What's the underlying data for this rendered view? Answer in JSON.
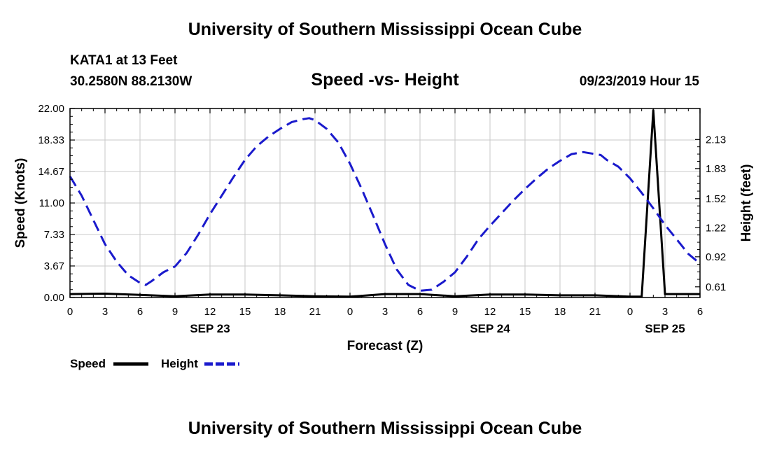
{
  "header": {
    "title": "University of Southern Mississippi Ocean Cube",
    "station": "KATA1 at 13 Feet",
    "coords": "30.2580N 88.2130W",
    "chart_title": "Speed -vs- Height",
    "timestamp": "09/23/2019 Hour 15"
  },
  "footer": {
    "title": "University of Southern Mississippi Ocean Cube"
  },
  "colors": {
    "speed": "#000000",
    "height": "#1a1acc",
    "grid": "#c8c8c8"
  },
  "chart_data": {
    "type": "line",
    "title": "Speed -vs- Height",
    "xlabel": "Forecast (Z)",
    "ylabel": "Speed (Knots)",
    "y2label": "Height (feet)",
    "xlim": [
      0,
      54
    ],
    "ylim": [
      0,
      22
    ],
    "y2lim": [
      0.5,
      2.45
    ],
    "grid": true,
    "x_ticks": [
      0,
      3,
      6,
      9,
      12,
      15,
      18,
      21,
      24,
      27,
      30,
      33,
      36,
      39,
      42,
      45,
      48,
      51,
      54
    ],
    "x_tick_labels": [
      "0",
      "3",
      "6",
      "9",
      "12",
      "15",
      "18",
      "21",
      "0",
      "3",
      "6",
      "9",
      "12",
      "15",
      "18",
      "21",
      "0",
      "3",
      "6"
    ],
    "y_ticks": [
      0,
      3.67,
      7.33,
      11,
      14.67,
      18.33,
      22
    ],
    "y_tick_labels": [
      "0.00",
      "3.67",
      "7.33",
      "11.00",
      "14.67",
      "18.33",
      "22.00"
    ],
    "y2_ticks": [
      0.61,
      0.92,
      1.22,
      1.52,
      1.83,
      2.13
    ],
    "y2_tick_labels": [
      "0.61",
      "0.92",
      "1.22",
      "1.52",
      "1.83",
      "2.13"
    ],
    "day_labels": [
      {
        "x": 12,
        "label": "SEP 23"
      },
      {
        "x": 36,
        "label": "SEP 24"
      },
      {
        "x": 51,
        "label": "SEP 25"
      }
    ],
    "legend": [
      {
        "name": "Speed",
        "style": "solid"
      },
      {
        "name": "Height",
        "style": "dashed"
      }
    ],
    "series": [
      {
        "name": "Speed",
        "axis": "left",
        "x": [
          0,
          3,
          6,
          9,
          12,
          15,
          18,
          21,
          24,
          27,
          30,
          33,
          36,
          39,
          42,
          45,
          48,
          49,
          50,
          51,
          52,
          53,
          54
        ],
        "y": [
          0.4,
          0.45,
          0.3,
          0.15,
          0.35,
          0.35,
          0.25,
          0.15,
          0.1,
          0.4,
          0.4,
          0.15,
          0.35,
          0.35,
          0.25,
          0.25,
          0.1,
          0.1,
          21.8,
          0.4,
          0.4,
          0.4,
          0.4
        ]
      },
      {
        "name": "Height",
        "axis": "right",
        "x": [
          0,
          1,
          2,
          3,
          4,
          5,
          6,
          6.5,
          7,
          8,
          9,
          10,
          11,
          12,
          13,
          14,
          15,
          16,
          17,
          18,
          19,
          20,
          20.5,
          21,
          22,
          23,
          24,
          25,
          26,
          27,
          28,
          29,
          30,
          31,
          32,
          33,
          34,
          35,
          36,
          37,
          38,
          39,
          40,
          41,
          42,
          43,
          44,
          45,
          45.5,
          46,
          47,
          48,
          49,
          50,
          51,
          52,
          53,
          54
        ],
        "y": [
          1.75,
          1.55,
          1.3,
          1.05,
          0.87,
          0.73,
          0.65,
          0.63,
          0.67,
          0.76,
          0.82,
          0.96,
          1.15,
          1.36,
          1.55,
          1.74,
          1.92,
          2.06,
          2.16,
          2.24,
          2.31,
          2.34,
          2.35,
          2.33,
          2.24,
          2.1,
          1.88,
          1.62,
          1.34,
          1.05,
          0.79,
          0.63,
          0.57,
          0.58,
          0.66,
          0.76,
          0.92,
          1.1,
          1.24,
          1.37,
          1.5,
          1.62,
          1.73,
          1.83,
          1.91,
          1.98,
          2.0,
          1.98,
          1.97,
          1.92,
          1.85,
          1.73,
          1.58,
          1.42,
          1.25,
          1.1,
          0.95,
          0.85
        ]
      }
    ]
  }
}
